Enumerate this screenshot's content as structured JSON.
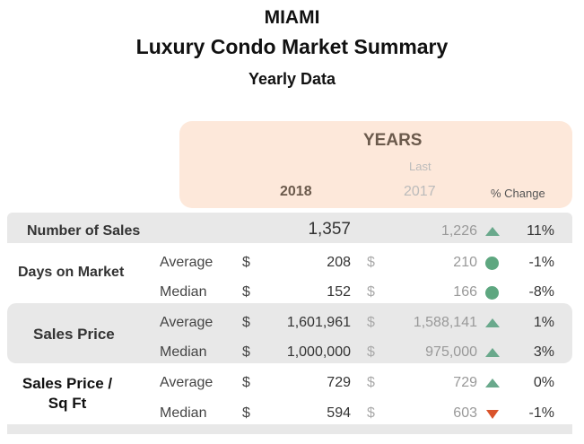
{
  "header": {
    "city": "MIAMI",
    "title": "Luxury Condo Market Summary",
    "subtitle": "Yearly Data"
  },
  "columns": {
    "group": "YEARS",
    "current": "2018",
    "last_prefix": "Last",
    "last": "2017",
    "change": "% Change"
  },
  "colors": {
    "header_bg": "#fde8da",
    "band": "#e8e8e8",
    "up": "#6aa98c",
    "flat": "#5ea780",
    "down": "#d9532b"
  },
  "metrics": {
    "sales": {
      "label": "Number of Sales",
      "current": "1,357",
      "last": "1,226",
      "trend": "up-triangle-icon",
      "change": "11%"
    },
    "dom": {
      "label": "Days on Market",
      "rows": [
        {
          "sub": "Average",
          "cur_sym": "$",
          "current": "208",
          "last_sym": "$",
          "last": "210",
          "trend": "circle-icon",
          "change": "-1%"
        },
        {
          "sub": "Median",
          "cur_sym": "$",
          "current": "152",
          "last_sym": "$",
          "last": "166",
          "trend": "circle-icon",
          "change": "-8%"
        }
      ]
    },
    "price": {
      "label": "Sales Price",
      "rows": [
        {
          "sub": "Average",
          "cur_sym": "$",
          "current": "1,601,961",
          "last_sym": "$",
          "last": "1,588,141",
          "trend": "up-triangle-icon",
          "change": "1%"
        },
        {
          "sub": "Median",
          "cur_sym": "$",
          "current": "1,000,000",
          "last_sym": "$",
          "last": "975,000",
          "trend": "up-triangle-icon",
          "change": "3%"
        }
      ]
    },
    "sqft": {
      "label_line1": "Sales Price /",
      "label_line2": "Sq Ft",
      "rows": [
        {
          "sub": "Average",
          "cur_sym": "$",
          "current": "729",
          "last_sym": "$",
          "last": "729",
          "trend": "up-triangle-icon",
          "change": "0%"
        },
        {
          "sub": "Median",
          "cur_sym": "$",
          "current": "594",
          "last_sym": "$",
          "last": "603",
          "trend": "down-triangle-icon",
          "change": "-1%"
        }
      ]
    }
  }
}
